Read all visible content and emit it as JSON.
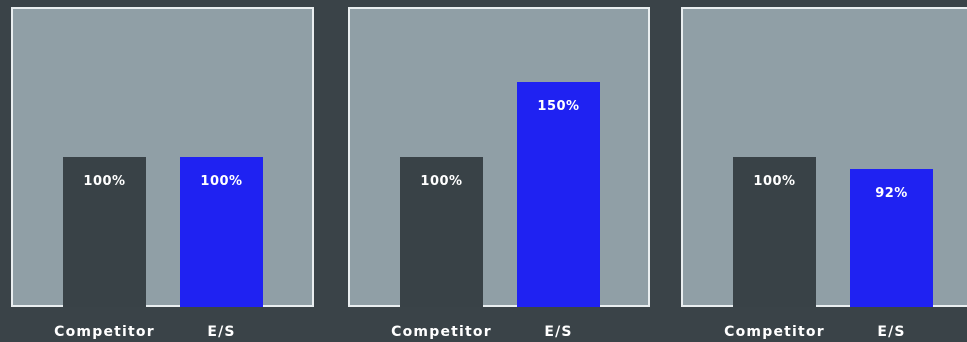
{
  "colors": {
    "background": "#3a4348",
    "panel": "#909fa6",
    "panel_border": "#e9eef0",
    "competitor_bar": "#394247",
    "es_bar": "#1f22f2",
    "text": "#ffffff"
  },
  "chart_data": [
    {
      "type": "bar",
      "categories": [
        "Competitor",
        "E/S"
      ],
      "values": [
        100,
        100
      ],
      "value_labels": [
        "100%",
        "100%"
      ],
      "title": "",
      "xlabel": "",
      "ylabel": "",
      "ylim": [
        0,
        200
      ],
      "grid": false
    },
    {
      "type": "bar",
      "categories": [
        "Competitor",
        "E/S"
      ],
      "values": [
        100,
        150
      ],
      "value_labels": [
        "100%",
        "150%"
      ],
      "title": "",
      "xlabel": "",
      "ylabel": "",
      "ylim": [
        0,
        200
      ],
      "grid": false
    },
    {
      "type": "bar",
      "categories": [
        "Competitor",
        "E/S"
      ],
      "values": [
        100,
        92
      ],
      "value_labels": [
        "100%",
        "92%"
      ],
      "title": "",
      "xlabel": "",
      "ylabel": "",
      "ylim": [
        0,
        200
      ],
      "grid": false
    }
  ]
}
